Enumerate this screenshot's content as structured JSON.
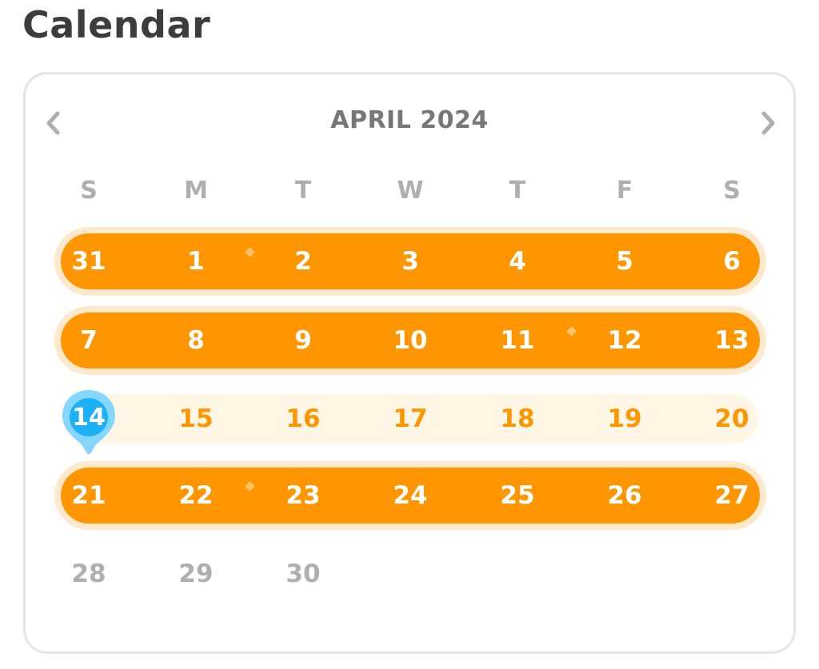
{
  "page": {
    "title": "Calendar"
  },
  "calendar": {
    "month_label": "APRIL 2024",
    "prev_icon": "chevron-left-icon",
    "next_icon": "chevron-right-icon",
    "weekdays": [
      "S",
      "M",
      "T",
      "W",
      "T",
      "F",
      "S"
    ],
    "weeks": [
      {
        "state": "streak",
        "days": [
          "31",
          "1",
          "2",
          "3",
          "4",
          "5",
          "6"
        ]
      },
      {
        "state": "streak",
        "days": [
          "7",
          "8",
          "9",
          "10",
          "11",
          "12",
          "13"
        ]
      },
      {
        "state": "frozen",
        "days": [
          "14",
          "15",
          "16",
          "17",
          "18",
          "19",
          "20"
        ]
      },
      {
        "state": "streak",
        "days": [
          "21",
          "22",
          "23",
          "24",
          "25",
          "26",
          "27"
        ]
      },
      {
        "state": "future",
        "days": [
          "28",
          "29",
          "30"
        ]
      }
    ],
    "today": "14",
    "today_icon": "today-pin-icon",
    "sparkle_icon": "sparkle-icon"
  },
  "colors": {
    "streak": "#ff9600",
    "streak_ring": "#ffe9cc",
    "frozen_bg": "#fff6e6",
    "today": "#1cb0f6",
    "muted": "#afafaf",
    "title": "#3c3c3c"
  }
}
